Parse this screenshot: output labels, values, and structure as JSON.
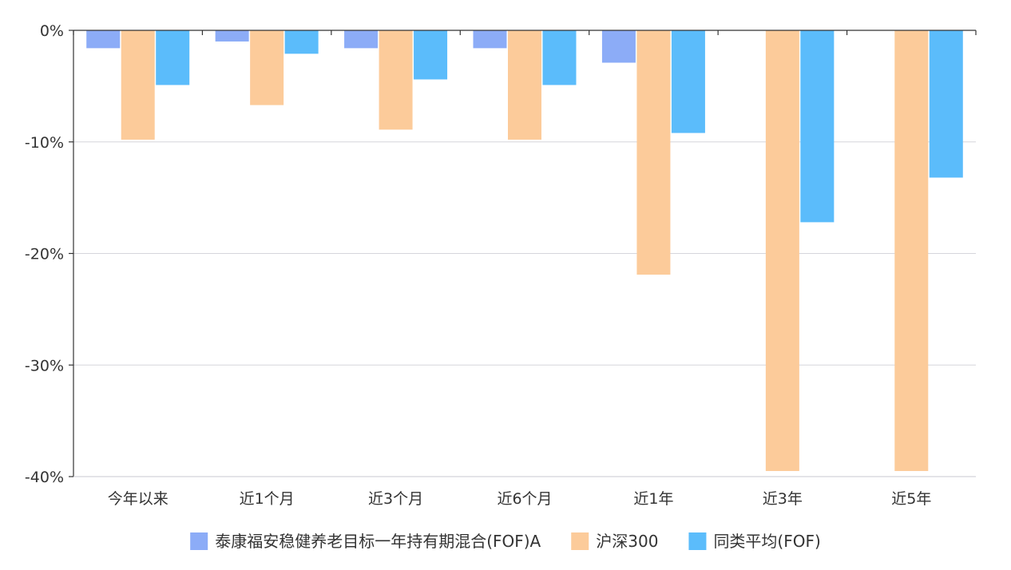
{
  "chart_data": {
    "type": "bar",
    "categories": [
      "今年以来",
      "近1个月",
      "近3个月",
      "近6个月",
      "近1年",
      "近3年",
      "近5年"
    ],
    "series": [
      {
        "name": "泰康福安稳健养老目标一年持有期混合(FOF)A",
        "color": "#8cacf7",
        "values": [
          -1.6,
          -1.0,
          -1.6,
          -1.6,
          -2.9,
          0,
          0
        ]
      },
      {
        "name": "沪深300",
        "color": "#fccb9a",
        "values": [
          -9.8,
          -6.7,
          -8.9,
          -9.8,
          -21.9,
          -39.5,
          -39.5
        ]
      },
      {
        "name": "同类平均(FOF)",
        "color": "#5bbcfb",
        "values": [
          -4.9,
          -2.1,
          -4.4,
          -4.9,
          -9.2,
          -17.2,
          -13.2
        ]
      }
    ],
    "y_ticks": [
      "0%",
      "-10%",
      "-20%",
      "-30%",
      "-40%"
    ],
    "y_tick_values": [
      0,
      -10,
      -20,
      -30,
      -40
    ],
    "ylim": [
      -40,
      0
    ],
    "grid": true,
    "legend_position": "bottom"
  }
}
